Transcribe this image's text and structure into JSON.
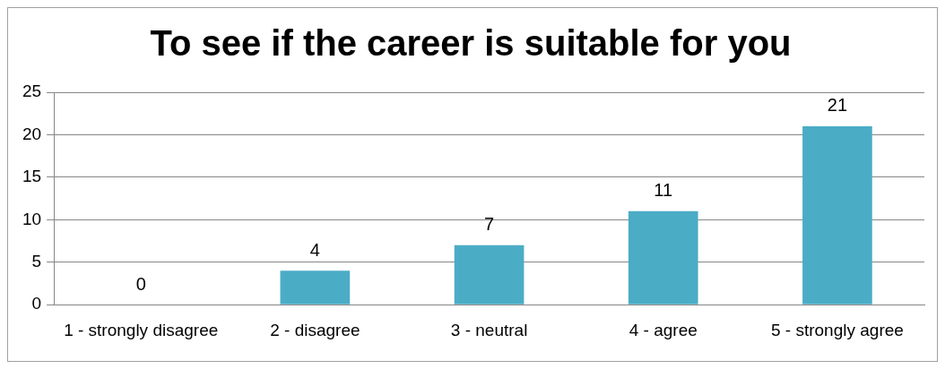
{
  "chart_data": {
    "type": "bar",
    "title": "To see if the career is suitable for you",
    "categories": [
      "1 - strongly disagree",
      "2 - disagree",
      "3 - neutral",
      "4 - agree",
      "5 - strongly agree"
    ],
    "values": [
      0,
      4,
      7,
      11,
      21
    ],
    "color": "#4bacc6",
    "ylim": [
      0,
      25
    ],
    "yticks": [
      0,
      5,
      10,
      15,
      20,
      25
    ],
    "grid": "y",
    "legend": false,
    "data_labels": true
  }
}
